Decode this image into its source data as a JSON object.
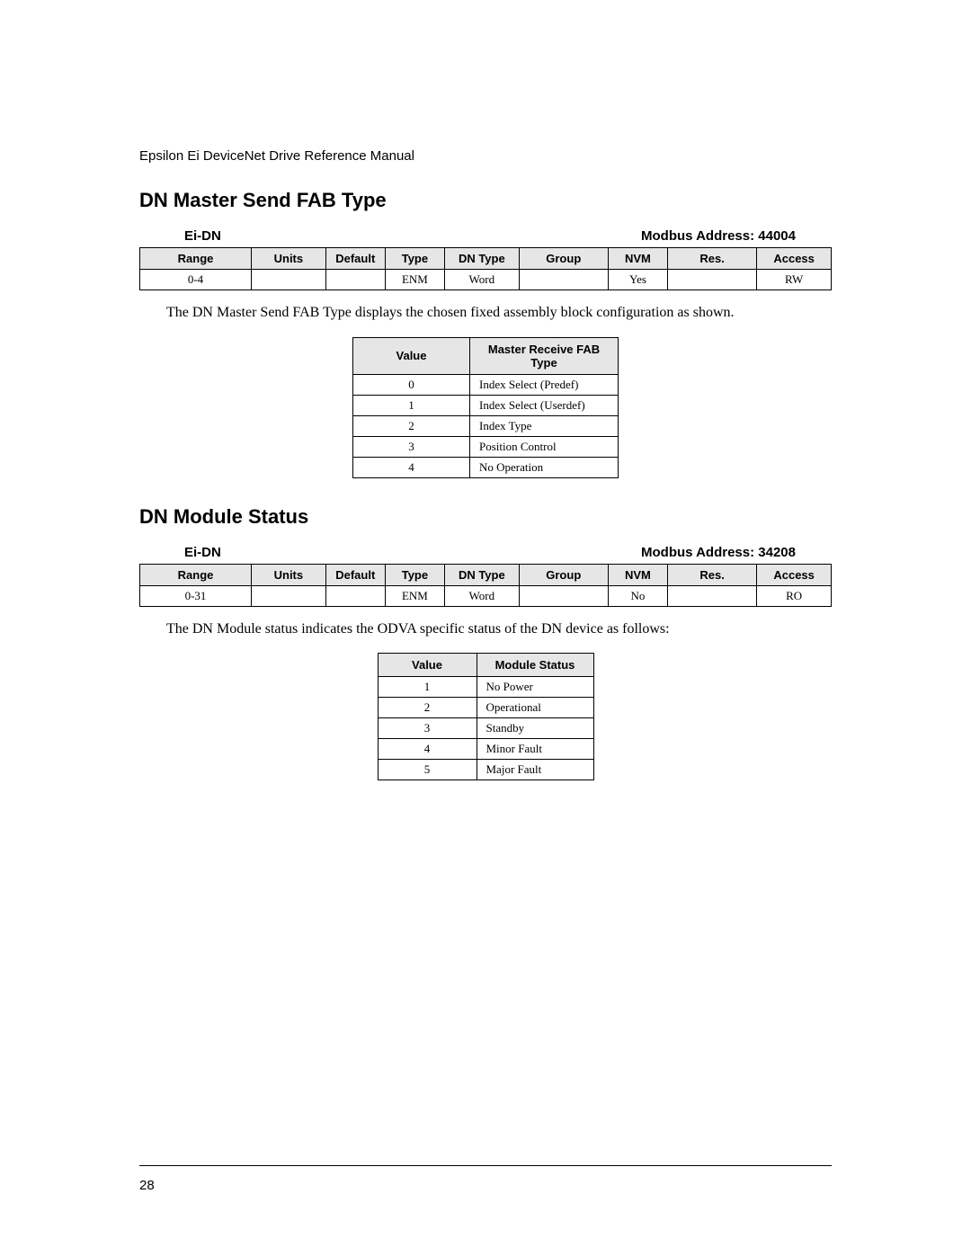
{
  "doc_header": "Epsilon Ei DeviceNet Drive Reference Manual",
  "page_number": "28",
  "section1": {
    "heading": "DN Master Send FAB Type",
    "device_label": "Ei-DN",
    "modbus_label": "Modbus Address: 44004",
    "table_headers": [
      "Range",
      "Units",
      "Default",
      "Type",
      "DN Type",
      "Group",
      "NVM",
      "Res.",
      "Access"
    ],
    "table_row": [
      "0-4",
      "",
      "",
      "ENM",
      "Word",
      "",
      "Yes",
      "",
      "RW"
    ],
    "body": "The DN Master Send FAB Type displays the chosen fixed assembly block configuration as shown.",
    "value_table": {
      "headers": [
        "Value",
        "Master Receive FAB Type"
      ],
      "rows": [
        [
          "0",
          "Index Select (Predef)"
        ],
        [
          "1",
          "Index Select (Userdef)"
        ],
        [
          "2",
          "Index Type"
        ],
        [
          "3",
          "Position Control"
        ],
        [
          "4",
          "No Operation"
        ]
      ]
    }
  },
  "section2": {
    "heading": "DN Module Status",
    "device_label": "Ei-DN",
    "modbus_label": "Modbus Address: 34208",
    "table_headers": [
      "Range",
      "Units",
      "Default",
      "Type",
      "DN Type",
      "Group",
      "NVM",
      "Res.",
      "Access"
    ],
    "table_row": [
      "0-31",
      "",
      "",
      "ENM",
      "Word",
      "",
      "No",
      "",
      "RO"
    ],
    "body": "The DN Module status indicates the ODVA specific status of the DN device as follows:",
    "value_table": {
      "headers": [
        "Value",
        "Module Status"
      ],
      "rows": [
        [
          "1",
          "No Power"
        ],
        [
          "2",
          "Operational"
        ],
        [
          "3",
          "Standby"
        ],
        [
          "4",
          "Minor Fault"
        ],
        [
          "5",
          "Major Fault"
        ]
      ]
    }
  }
}
